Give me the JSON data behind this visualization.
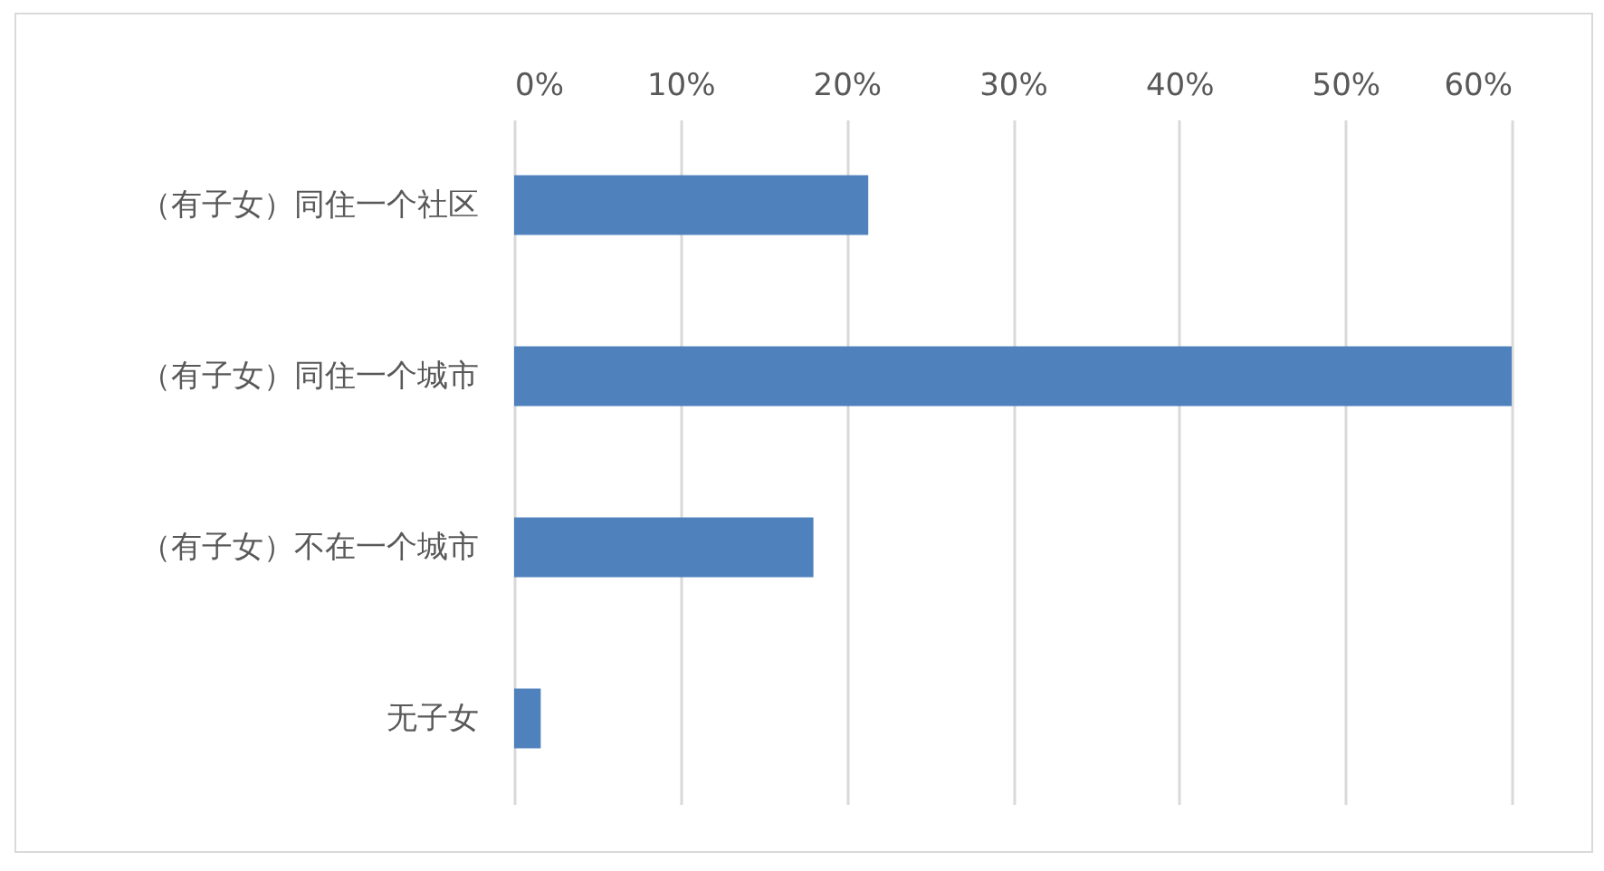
{
  "chart_data": {
    "type": "bar",
    "orientation": "horizontal",
    "categories": [
      "（有子女）同住一个社区",
      "（有子女）同住一个城市",
      "（有子女）不在一个城市",
      "无子女"
    ],
    "values": [
      21.3,
      60,
      18.0,
      1.6
    ],
    "color": "#4f81bd",
    "xlim": [
      0,
      60
    ],
    "xticks": [
      {
        "value": 0,
        "label": "0%"
      },
      {
        "value": 10,
        "label": "10%"
      },
      {
        "value": 20,
        "label": "20%"
      },
      {
        "value": 30,
        "label": "30%"
      },
      {
        "value": 40,
        "label": "40%"
      },
      {
        "value": 50,
        "label": "50%"
      },
      {
        "value": 60,
        "label": "60%"
      }
    ],
    "grid": "x"
  }
}
